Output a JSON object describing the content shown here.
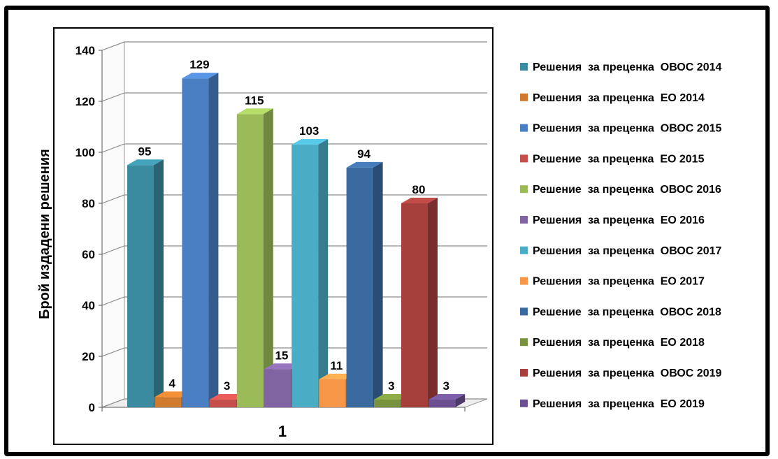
{
  "chart_data": {
    "type": "bar",
    "categories": [
      "1"
    ],
    "ylabel": "Брой издадени решения",
    "xlabel": "",
    "ylim": [
      0,
      140
    ],
    "yticks": [
      0,
      20,
      40,
      60,
      80,
      100,
      120,
      140
    ],
    "grid": true,
    "legend_position": "right",
    "series": [
      {
        "name": "Решения  за преценка  ОВОС 2014",
        "values": [
          95
        ],
        "color": "#3a8ba0"
      },
      {
        "name": "Решения  за преценка  ЕО 2014",
        "values": [
          4
        ],
        "color": "#d07a2e"
      },
      {
        "name": "Решения  за преценка  ОВОС 2015",
        "values": [
          129
        ],
        "color": "#4b7fc4"
      },
      {
        "name": "Решение  за преценка  ЕО 2015",
        "values": [
          3
        ],
        "color": "#c64f4b"
      },
      {
        "name": "Решение  за преценка  ОВОС 2016",
        "values": [
          115
        ],
        "color": "#9bbb59"
      },
      {
        "name": "Решения  за преценка  ЕО 2016",
        "values": [
          15
        ],
        "color": "#8064a2"
      },
      {
        "name": "Решения  за преценка  ОВОС 2017",
        "values": [
          103
        ],
        "color": "#4bacc6"
      },
      {
        "name": "Решения  за преценка  ЕО 2017",
        "values": [
          11
        ],
        "color": "#f79646"
      },
      {
        "name": "Решение  за преценка  ОВОС 2018",
        "values": [
          94
        ],
        "color": "#3b6aa0"
      },
      {
        "name": "Решения  за преценка  ЕО 2018",
        "values": [
          3
        ],
        "color": "#77933c"
      },
      {
        "name": "Решения  за преценка  ОВОС 2019",
        "values": [
          80
        ],
        "color": "#a5403d"
      },
      {
        "name": "Решения  за преценка  ЕО 2019",
        "values": [
          3
        ],
        "color": "#6b4f91"
      }
    ]
  }
}
